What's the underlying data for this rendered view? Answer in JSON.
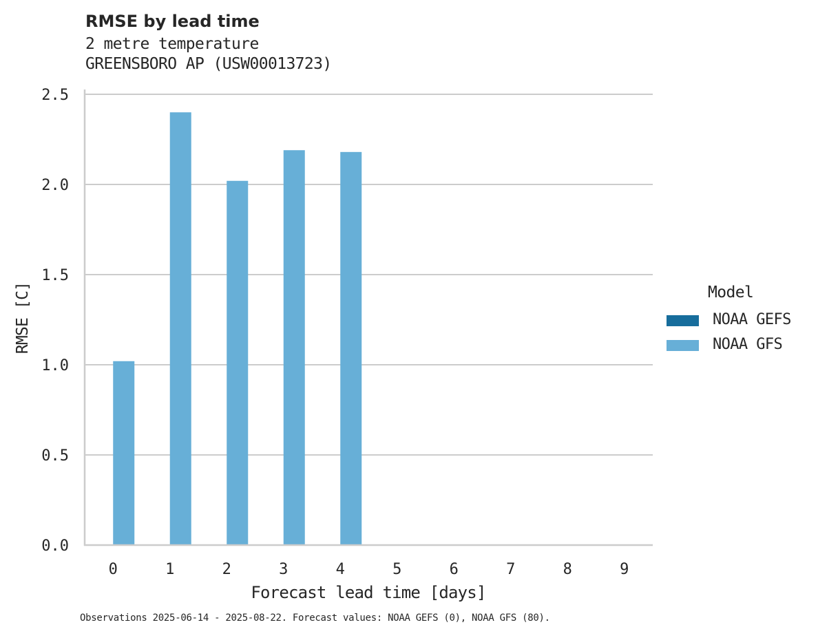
{
  "header": {
    "title": "RMSE by lead time",
    "subtitle_1": "2 metre temperature",
    "subtitle_2": "GREENSBORO AP (USW00013723)"
  },
  "legend": {
    "title": "Model",
    "items": [
      {
        "label": "NOAA GEFS",
        "color": "#176d9c"
      },
      {
        "label": "NOAA GFS",
        "color": "#67afd7"
      }
    ]
  },
  "footer": {
    "note": "Observations 2025-06-14 - 2025-08-22. Forecast values: NOAA GEFS (0), NOAA GFS (80)."
  },
  "colors": {
    "grid": "#cccccc",
    "axis": "#cccccc",
    "text": "#262626"
  },
  "chart_data": {
    "type": "bar",
    "title": "RMSE by lead time",
    "subtitle": "2 metre temperature — GREENSBORO AP (USW00013723)",
    "xlabel": "Forecast lead time [days]",
    "ylabel": "RMSE [C]",
    "categories": [
      "0",
      "1",
      "2",
      "3",
      "4",
      "5",
      "6",
      "7",
      "8",
      "9"
    ],
    "series": [
      {
        "name": "NOAA GEFS",
        "color": "#176d9c",
        "values": [
          null,
          null,
          null,
          null,
          null,
          null,
          null,
          null,
          null,
          null
        ]
      },
      {
        "name": "NOAA GFS",
        "color": "#67afd7",
        "values": [
          1.02,
          2.4,
          2.02,
          2.19,
          2.18,
          null,
          null,
          null,
          null,
          null
        ]
      }
    ],
    "ylim": [
      0,
      2.52
    ],
    "yticks": [
      "0.0",
      "0.5",
      "1.0",
      "1.5",
      "2.0",
      "2.5"
    ],
    "grid": "horizontal",
    "legend_position": "right",
    "legend_title": "Model"
  }
}
